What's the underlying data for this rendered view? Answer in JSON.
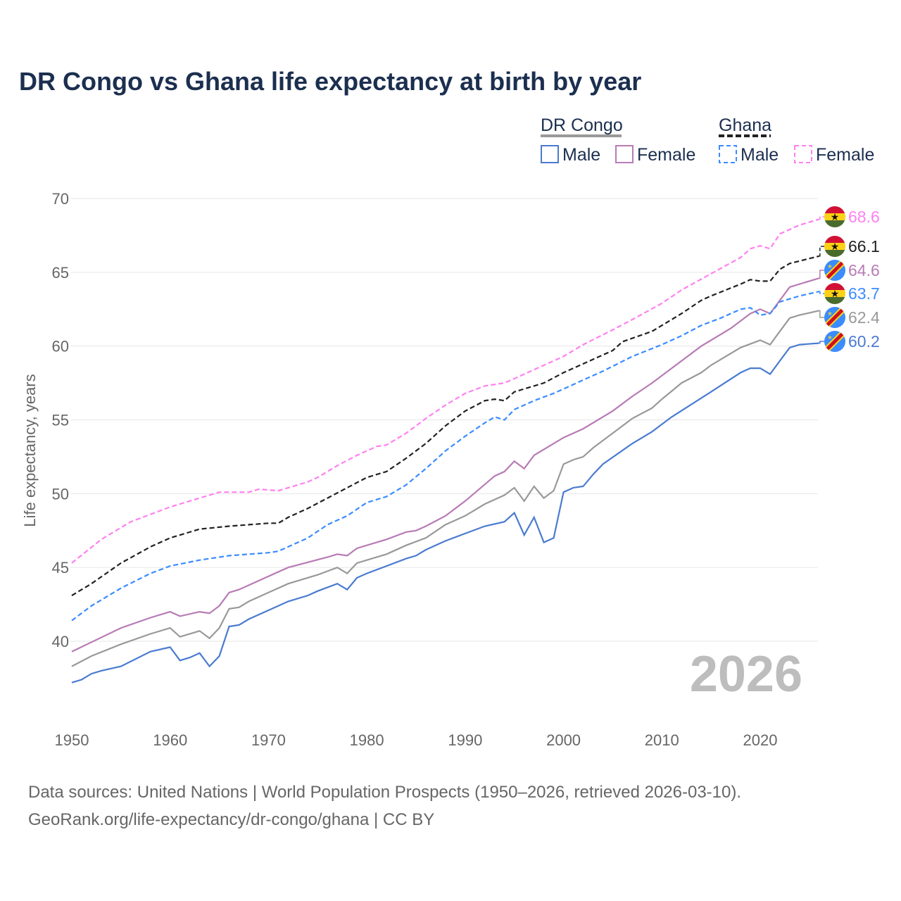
{
  "chart_data": {
    "type": "line",
    "title": "DR Congo vs Ghana life expectancy at birth by year",
    "xlabel": "",
    "ylabel": "Life expectancy, years",
    "xlim": [
      1950,
      2026
    ],
    "ylim": [
      35.5,
      70.5
    ],
    "x_ticks": [
      "1950",
      "1960",
      "1970",
      "1980",
      "1990",
      "2000",
      "2010",
      "2020"
    ],
    "y_ticks": [
      "40",
      "45",
      "50",
      "55",
      "60",
      "65",
      "70"
    ],
    "grid": true,
    "watermark_year": "2026",
    "legend": {
      "placement": "top-right",
      "groups": [
        {
          "name": "DR Congo",
          "line_color": "#999999",
          "dashed": false,
          "items": [
            "Male",
            "Female"
          ]
        },
        {
          "name": "Ghana",
          "line_color": "#222222",
          "dashed": true,
          "items": [
            "Male",
            "Female"
          ]
        }
      ]
    },
    "series": [
      {
        "name": "Ghana Female",
        "country": "Ghana",
        "color": "#ff80f0",
        "dashed": true,
        "end_label": "68.6",
        "x": [
          1950,
          1953,
          1956,
          1958,
          1960,
          1963,
          1965,
          1968,
          1969,
          1971,
          1974,
          1975,
          1977,
          1979,
          1981,
          1982,
          1984,
          1986,
          1988,
          1990,
          1992,
          1994,
          1996,
          1998,
          2000,
          2002,
          2005,
          2007,
          2010,
          2012,
          2015,
          2018,
          2019,
          2020,
          2021,
          2022,
          2024,
          2026
        ],
        "values": [
          45.3,
          46.9,
          48.1,
          48.6,
          49.1,
          49.7,
          50.1,
          50.1,
          50.3,
          50.2,
          50.8,
          51.1,
          51.9,
          52.6,
          53.2,
          53.3,
          54.1,
          55.1,
          56.0,
          56.8,
          57.3,
          57.5,
          58.1,
          58.7,
          59.3,
          60.1,
          61.1,
          61.8,
          62.9,
          63.8,
          64.9,
          66.0,
          66.6,
          66.8,
          66.6,
          67.6,
          68.2,
          68.6
        ]
      },
      {
        "name": "Ghana",
        "country": "Ghana",
        "color": "#222222",
        "dashed": true,
        "end_label": "66.1",
        "x": [
          1950,
          1952,
          1955,
          1958,
          1960,
          1963,
          1966,
          1968,
          1970,
          1971,
          1972,
          1974,
          1976,
          1978,
          1980,
          1982,
          1984,
          1986,
          1988,
          1990,
          1992,
          1993,
          1994,
          1995,
          1998,
          2000,
          2003,
          2005,
          2006,
          2009,
          2010,
          2012,
          2014,
          2015,
          2018,
          2019,
          2020,
          2021,
          2022,
          2023,
          2026
        ],
        "values": [
          43.1,
          43.9,
          45.3,
          46.4,
          47.0,
          47.6,
          47.8,
          47.9,
          48.0,
          48.0,
          48.4,
          49.0,
          49.7,
          50.4,
          51.1,
          51.5,
          52.4,
          53.4,
          54.6,
          55.6,
          56.3,
          56.4,
          56.3,
          56.9,
          57.5,
          58.2,
          59.1,
          59.7,
          60.3,
          61.0,
          61.4,
          62.2,
          63.1,
          63.4,
          64.2,
          64.5,
          64.4,
          64.4,
          65.2,
          65.6,
          66.1
        ]
      },
      {
        "name": "DR Congo Female",
        "country": "DR Congo",
        "color": "#b87bb5",
        "dashed": false,
        "end_label": "64.6",
        "x": [
          1950,
          1955,
          1958,
          1960,
          1961,
          1963,
          1964,
          1965,
          1966,
          1967,
          1970,
          1972,
          1976,
          1977,
          1978,
          1979,
          1982,
          1984,
          1985,
          1986,
          1988,
          1990,
          1993,
          1994,
          1995,
          1996,
          1997,
          2000,
          2002,
          2005,
          2007,
          2009,
          2010,
          2014,
          2017,
          2019,
          2020,
          2021,
          2022,
          2023,
          2026
        ],
        "values": [
          39.3,
          40.9,
          41.6,
          42.0,
          41.7,
          42.0,
          41.9,
          42.4,
          43.3,
          43.5,
          44.4,
          45.0,
          45.7,
          45.9,
          45.8,
          46.3,
          46.9,
          47.4,
          47.5,
          47.8,
          48.5,
          49.5,
          51.2,
          51.5,
          52.2,
          51.7,
          52.6,
          53.8,
          54.4,
          55.6,
          56.6,
          57.5,
          58.0,
          60.0,
          61.2,
          62.2,
          62.5,
          62.2,
          63.1,
          64.0,
          64.6
        ]
      },
      {
        "name": "Ghana Male",
        "country": "Ghana",
        "color": "#3b8cff",
        "dashed": true,
        "end_label": "63.7",
        "x": [
          1950,
          1952,
          1955,
          1958,
          1960,
          1963,
          1966,
          1970,
          1971,
          1974,
          1976,
          1978,
          1980,
          1982,
          1984,
          1986,
          1988,
          1990,
          1992,
          1993,
          1994,
          1995,
          1997,
          1999,
          2002,
          2004,
          2007,
          2010,
          2012,
          2014,
          2016,
          2018,
          2019,
          2020,
          2021,
          2022,
          2024,
          2026
        ],
        "values": [
          41.4,
          42.4,
          43.6,
          44.6,
          45.1,
          45.5,
          45.8,
          46.0,
          46.1,
          47.0,
          47.9,
          48.5,
          49.4,
          49.8,
          50.6,
          51.7,
          52.9,
          53.9,
          54.8,
          55.2,
          55.0,
          55.7,
          56.3,
          56.8,
          57.7,
          58.3,
          59.3,
          60.1,
          60.7,
          61.4,
          61.9,
          62.5,
          62.6,
          62.1,
          62.2,
          63.0,
          63.4,
          63.7
        ]
      },
      {
        "name": "DR Congo",
        "country": "DR Congo",
        "color": "#999999",
        "dashed": false,
        "end_label": "62.4",
        "x": [
          1950,
          1952,
          1955,
          1958,
          1960,
          1961,
          1963,
          1964,
          1965,
          1966,
          1967,
          1968,
          1970,
          1972,
          1975,
          1977,
          1978,
          1979,
          1982,
          1984,
          1986,
          1988,
          1990,
          1992,
          1994,
          1995,
          1996,
          1997,
          1998,
          1999,
          2000,
          2001,
          2002,
          2003,
          2007,
          2009,
          2010,
          2012,
          2014,
          2015,
          2018,
          2020,
          2021,
          2022,
          2023,
          2024,
          2026
        ],
        "values": [
          38.3,
          39.0,
          39.8,
          40.5,
          40.9,
          40.3,
          40.7,
          40.2,
          40.9,
          42.2,
          42.3,
          42.7,
          43.3,
          43.9,
          44.5,
          45.0,
          44.6,
          45.3,
          45.9,
          46.5,
          47.0,
          47.9,
          48.5,
          49.3,
          49.9,
          50.4,
          49.5,
          50.5,
          49.7,
          50.2,
          52.0,
          52.3,
          52.5,
          53.1,
          55.1,
          55.8,
          56.4,
          57.5,
          58.2,
          58.7,
          59.9,
          60.4,
          60.1,
          61.0,
          61.9,
          62.1,
          62.4
        ]
      },
      {
        "name": "DR Congo Male",
        "country": "DR Congo",
        "color": "#4a7bd0",
        "dashed": false,
        "end_label": "60.2",
        "x": [
          1950,
          1951,
          1952,
          1953,
          1955,
          1958,
          1960,
          1961,
          1962,
          1963,
          1964,
          1965,
          1966,
          1967,
          1968,
          1970,
          1972,
          1974,
          1975,
          1977,
          1978,
          1979,
          1980,
          1982,
          1984,
          1985,
          1986,
          1988,
          1990,
          1992,
          1994,
          1995,
          1996,
          1997,
          1998,
          1999,
          2000,
          2001,
          2002,
          2003,
          2004,
          2007,
          2009,
          2010,
          2011,
          2015,
          2018,
          2019,
          2020,
          2021,
          2022,
          2023,
          2024,
          2026
        ],
        "values": [
          37.2,
          37.4,
          37.8,
          38.0,
          38.3,
          39.3,
          39.6,
          38.7,
          38.9,
          39.2,
          38.3,
          39.0,
          41.0,
          41.1,
          41.5,
          42.1,
          42.7,
          43.1,
          43.4,
          43.9,
          43.5,
          44.3,
          44.6,
          45.1,
          45.6,
          45.8,
          46.2,
          46.8,
          47.3,
          47.8,
          48.1,
          48.7,
          47.2,
          48.4,
          46.7,
          47.0,
          50.1,
          50.4,
          50.5,
          51.3,
          52.0,
          53.4,
          54.2,
          54.7,
          55.2,
          56.9,
          58.2,
          58.5,
          58.5,
          58.1,
          59.0,
          59.9,
          60.1,
          60.2
        ]
      }
    ]
  },
  "footer": {
    "line1": "Data sources: United Nations | World Population Prospects (1950–2026, retrieved 2026-03-10).",
    "line2": "GeoRank.org/life-expectancy/dr-congo/ghana | CC BY"
  }
}
